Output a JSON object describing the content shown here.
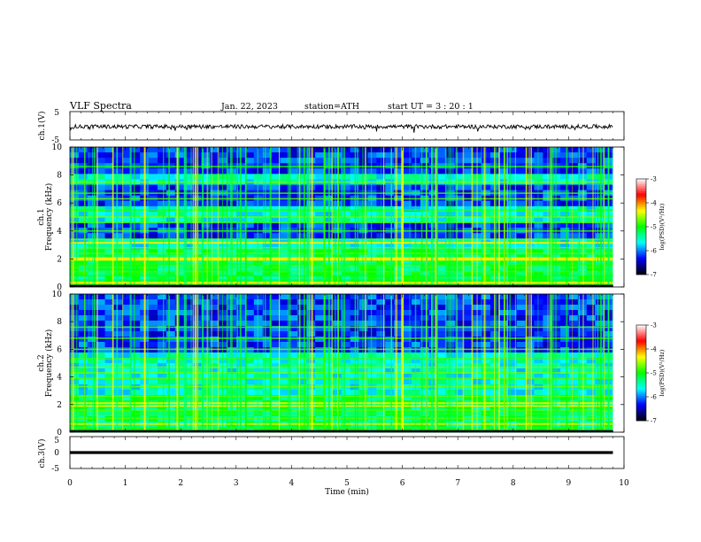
{
  "header": {
    "title": "VLF  Spectra",
    "date": "Jan. 22, 2023",
    "station": "station=ATH",
    "start": "start  UT  =   3  : 20 : 1"
  },
  "chart_data": [
    {
      "type": "line",
      "panel": "ch1-waveform",
      "ylabel": "ch.1(V)",
      "ylim": [
        -5,
        5
      ],
      "yticks": [
        "5",
        "-5"
      ],
      "x_range_min": [
        0,
        9.8
      ],
      "level": -0.3,
      "amplitude": 0.7
    },
    {
      "type": "heatmap",
      "panel": "ch1-spectrogram",
      "ylabel_top": "ch.1",
      "ylabel": "Frequency  (kHz)",
      "xlim": [
        0,
        10
      ],
      "ylim": [
        0,
        10
      ],
      "yticks": [
        "0",
        "2",
        "4",
        "6",
        "8",
        "10"
      ],
      "data_extent_x": [
        0,
        9.8
      ],
      "colorbar": {
        "label": "log(PSD)(V²/Hz)",
        "ticks": [
          "-3",
          "-4",
          "-5",
          "-6",
          "-7"
        ],
        "range": [
          -7,
          -3
        ],
        "colors": [
          "#000000",
          "#0000ff",
          "#00ffff",
          "#00ff00",
          "#ffff00",
          "#ff0000",
          "#ffffff"
        ]
      },
      "bands_khz": [
        0.2,
        0.5,
        0.8,
        1.1,
        1.4,
        1.65,
        1.9,
        2.1,
        2.4,
        2.8,
        3.4,
        4.0,
        4.6,
        5.0,
        5.5,
        6.3,
        6.7,
        7.5,
        8.6
      ],
      "strong_lines_khz": [
        0.3,
        1.95,
        2.05,
        3.15
      ],
      "low_intensity_regions_khz": [
        [
          3.6,
          4.8
        ],
        [
          5.6,
          7.4
        ],
        [
          8.0,
          10.0
        ]
      ]
    },
    {
      "type": "heatmap",
      "panel": "ch2-spectrogram",
      "ylabel_top": "ch.2",
      "ylabel": "Frequency  (kHz)",
      "xlim": [
        0,
        10
      ],
      "ylim": [
        0,
        10
      ],
      "yticks": [
        "0",
        "2",
        "4",
        "6",
        "8",
        "10"
      ],
      "data_extent_x": [
        0,
        9.8
      ],
      "colorbar": {
        "label": "log(PSD)(V²/Hz)",
        "ticks": [
          "-3",
          "-4",
          "-5",
          "-6",
          "-7"
        ],
        "range": [
          -7,
          -3
        ],
        "colors": [
          "#000000",
          "#0000ff",
          "#00ffff",
          "#00ff00",
          "#ffff00",
          "#ff0000",
          "#ffffff"
        ]
      },
      "bands_khz": [
        0.3,
        0.6,
        1.0,
        1.35,
        1.6,
        2.6,
        3.3,
        3.9,
        4.3,
        4.7,
        5.3,
        6.0,
        6.8,
        7.6
      ],
      "strong_lines_khz": [
        0.6,
        1.9,
        2.1
      ],
      "low_intensity_regions_khz": [
        [
          5.8,
          10.0
        ]
      ]
    },
    {
      "type": "line",
      "panel": "ch3-waveform",
      "ylabel": "ch.3(V)",
      "xlabel": "Time  (min)",
      "xlim": [
        0,
        10
      ],
      "ylim": [
        -5,
        5
      ],
      "yticks": [
        "5",
        "0",
        "-5"
      ],
      "xticks": [
        "0",
        "1",
        "2",
        "3",
        "4",
        "5",
        "6",
        "7",
        "8",
        "9",
        "10"
      ],
      "x_range_min": [
        0,
        9.8
      ],
      "level": 0
    }
  ]
}
